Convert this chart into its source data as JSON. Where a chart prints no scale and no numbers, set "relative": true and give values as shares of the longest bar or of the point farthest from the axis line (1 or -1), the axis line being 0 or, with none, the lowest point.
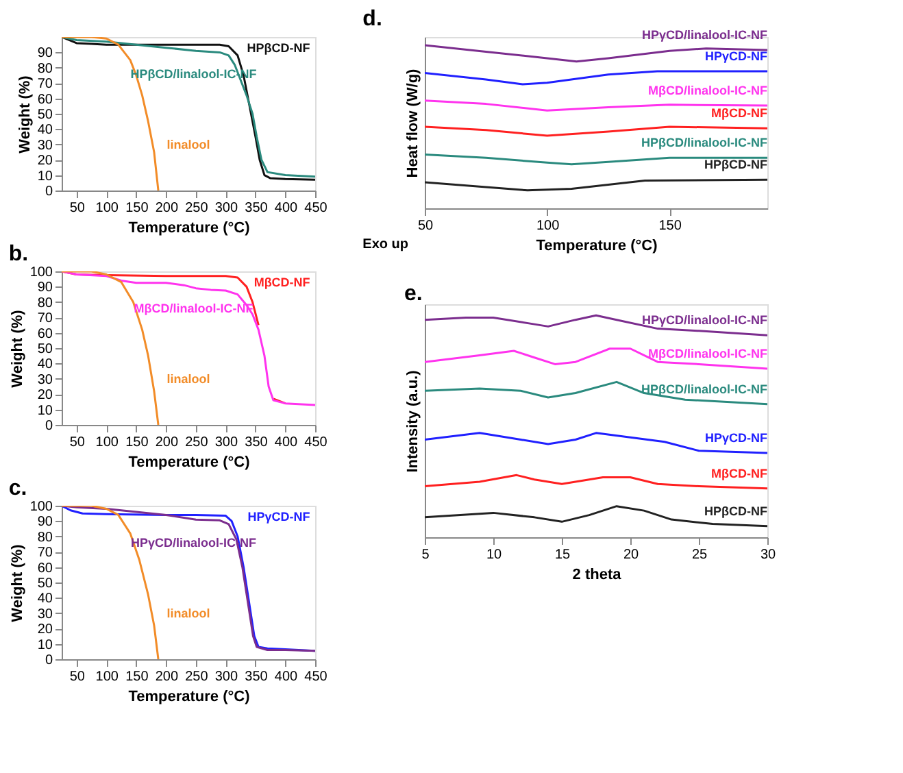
{
  "chart_data": [
    {
      "type": "line",
      "xlabel": "Temperature (°C)",
      "ylabel": "Weight (%)",
      "xlim": [
        25,
        450
      ],
      "ylim": [
        0,
        100
      ],
      "xticks": [
        50,
        100,
        150,
        200,
        250,
        300,
        350,
        400,
        450
      ],
      "yticks": [
        0,
        10,
        20,
        30,
        40,
        50,
        60,
        70,
        80,
        90
      ],
      "grid": false,
      "series": [
        {
          "name": "HPβCD-NF",
          "color": "#111111",
          "x": [
            25,
            50,
            75,
            100,
            150,
            200,
            250,
            290,
            305,
            320,
            330,
            340,
            350,
            357,
            365,
            375,
            400,
            450
          ],
          "values": [
            100,
            96,
            95.5,
            95,
            95,
            95,
            95,
            95,
            94,
            88,
            75,
            55,
            35,
            20,
            10,
            8,
            7.5,
            7
          ]
        },
        {
          "name": "HPβCD/linalool-IC-NF",
          "color": "#2a8a7e",
          "x": [
            25,
            50,
            100,
            150,
            200,
            250,
            290,
            305,
            315,
            325,
            335,
            345,
            352,
            360,
            370,
            400,
            450
          ],
          "values": [
            100,
            98,
            97,
            95,
            93,
            91,
            90,
            88,
            82,
            72,
            62,
            50,
            35,
            20,
            12,
            10,
            9
          ]
        },
        {
          "name": "linalool",
          "color": "#f28c28",
          "x": [
            25,
            75,
            100,
            120,
            140,
            150,
            160,
            170,
            180,
            187
          ],
          "values": [
            100,
            100,
            99,
            95,
            85,
            75,
            62,
            45,
            25,
            0
          ]
        }
      ]
    },
    {
      "type": "line",
      "title": "b.",
      "xlabel": "Temperature (°C)",
      "ylabel": "Weight (%)",
      "xlim": [
        25,
        450
      ],
      "ylim": [
        0,
        100
      ],
      "xticks": [
        50,
        100,
        150,
        200,
        250,
        300,
        350,
        400,
        450
      ],
      "yticks": [
        0,
        10,
        20,
        30,
        40,
        50,
        60,
        70,
        80,
        90,
        100
      ],
      "grid": false,
      "series": [
        {
          "name": "MβCD-NF",
          "color": "#ff2020",
          "x": [
            25,
            50,
            100,
            200,
            300,
            320,
            335,
            345,
            355,
            365,
            372,
            380,
            400
          ],
          "values": [
            100,
            98,
            97.5,
            97,
            97,
            96,
            90,
            80,
            65,
            null,
            null,
            17,
            14
          ]
        },
        {
          "name": "MβCD/linalool-IC-NF",
          "color": "#ff33ee",
          "x": [
            25,
            50,
            100,
            125,
            150,
            200,
            230,
            250,
            275,
            300,
            320,
            335,
            345,
            355,
            365,
            372,
            380,
            400,
            450
          ],
          "values": [
            100,
            98,
            97,
            94,
            92.5,
            92.5,
            91,
            89,
            88,
            87.5,
            85,
            78,
            72,
            62,
            45,
            25,
            16,
            14,
            13
          ]
        },
        {
          "name": "linalool",
          "color": "#f28c28",
          "x": [
            25,
            75,
            100,
            125,
            145,
            160,
            170,
            180,
            187
          ],
          "values": [
            100,
            100,
            98,
            93,
            80,
            62,
            45,
            22,
            0
          ]
        }
      ]
    },
    {
      "type": "line",
      "title": "c.",
      "xlabel": "Temperature (°C)",
      "ylabel": "Weight (%)",
      "xlim": [
        25,
        450
      ],
      "ylim": [
        0,
        100
      ],
      "xticks": [
        50,
        100,
        150,
        200,
        250,
        300,
        350,
        400,
        450
      ],
      "yticks": [
        0,
        10,
        20,
        30,
        40,
        50,
        60,
        70,
        80,
        90,
        100
      ],
      "grid": false,
      "series": [
        {
          "name": "HPγCD-NF",
          "color": "#2020ff",
          "x": [
            25,
            40,
            60,
            100,
            200,
            250,
            300,
            310,
            320,
            330,
            340,
            348,
            355,
            370,
            400,
            450
          ],
          "values": [
            100,
            97,
            95,
            94.5,
            94,
            94,
            93.5,
            90,
            80,
            60,
            35,
            15,
            8,
            7,
            6.5,
            5.5
          ]
        },
        {
          "name": "HPγCD/linalool-IC-NF",
          "color": "#7b2d8e",
          "x": [
            25,
            50,
            100,
            150,
            200,
            250,
            290,
            305,
            318,
            328,
            338,
            346,
            352,
            370,
            400,
            450
          ],
          "values": [
            100,
            99,
            98,
            96,
            94,
            91,
            90.5,
            88,
            78,
            60,
            35,
            15,
            8,
            6,
            6,
            5.5
          ]
        },
        {
          "name": "linalool",
          "color": "#f28c28",
          "x": [
            25,
            75,
            100,
            120,
            140,
            155,
            170,
            180,
            187
          ],
          "values": [
            100,
            100,
            98,
            94,
            82,
            65,
            42,
            22,
            0
          ]
        }
      ]
    },
    {
      "type": "line",
      "title": "d.",
      "xlabel": "Temperature (°C)",
      "ylabel": "Heat flow (W/g)",
      "relative": true,
      "tick_labels": "x",
      "xlim": [
        50,
        190
      ],
      "xticks": [
        50,
        100,
        150
      ],
      "grid": false,
      "annotations": [
        "Exo up"
      ],
      "series": [
        {
          "name": "HPγCD/linalool-IC-NF",
          "color": "#7b2d8e",
          "x": [
            50,
            75,
            100,
            112,
            125,
            150,
            165,
            190
          ],
          "values": [
            1,
            0.96,
            0.92,
            0.9,
            0.92,
            0.965,
            0.98,
            0.97
          ]
        },
        {
          "name": "HPγCD-NF",
          "color": "#2020ff",
          "x": [
            50,
            75,
            90,
            100,
            125,
            145,
            190
          ],
          "values": [
            0.83,
            0.79,
            0.76,
            0.77,
            0.82,
            0.84,
            0.84
          ]
        },
        {
          "name": "MβCD/linalool-IC-NF",
          "color": "#ff33ee",
          "x": [
            50,
            75,
            100,
            125,
            150,
            190
          ],
          "values": [
            0.66,
            0.64,
            0.6,
            0.62,
            0.635,
            0.63
          ]
        },
        {
          "name": "MβCD-NF",
          "color": "#ff2020",
          "x": [
            50,
            75,
            100,
            125,
            150,
            190
          ],
          "values": [
            0.5,
            0.48,
            0.445,
            0.47,
            0.5,
            0.49
          ]
        },
        {
          "name": "HPβCD/linalool-IC-NF",
          "color": "#2a8a7e",
          "x": [
            50,
            75,
            100,
            110,
            125,
            150,
            190
          ],
          "values": [
            0.33,
            0.31,
            0.28,
            0.27,
            0.285,
            0.31,
            0.31
          ]
        },
        {
          "name": "HPβCD-NF",
          "color": "#222222",
          "x": [
            50,
            75,
            92,
            110,
            140,
            190
          ],
          "values": [
            0.16,
            0.13,
            0.11,
            0.12,
            0.17,
            0.175
          ]
        }
      ]
    },
    {
      "type": "line",
      "title": "e.",
      "xlabel": "2 theta",
      "ylabel": "Intensity (a.u.)",
      "relative": true,
      "tick_labels": "x",
      "xlim": [
        5,
        30
      ],
      "xticks": [
        5,
        10,
        15,
        20,
        25,
        30
      ],
      "grid": false,
      "series": [
        {
          "name": "HPγCD/linalool-IC-NF",
          "color": "#7b2d8e",
          "x": [
            5,
            8,
            10,
            13,
            14,
            16,
            17.5,
            19,
            22,
            25,
            30
          ],
          "values": [
            0.98,
            0.99,
            0.99,
            0.96,
            0.95,
            0.98,
            1,
            0.98,
            0.94,
            0.93,
            0.91
          ]
        },
        {
          "name": "MβCD/linalool-IC-NF",
          "color": "#ff33ee",
          "x": [
            5,
            9,
            11.5,
            13,
            14.5,
            16,
            18.5,
            20,
            22,
            25,
            30
          ],
          "values": [
            0.79,
            0.82,
            0.84,
            0.81,
            0.78,
            0.79,
            0.85,
            0.85,
            0.79,
            0.78,
            0.76
          ]
        },
        {
          "name": "HPβCD/linalool-IC-NF",
          "color": "#2a8a7e",
          "x": [
            5,
            9,
            12,
            14,
            16,
            19,
            21,
            24,
            30
          ],
          "values": [
            0.66,
            0.67,
            0.66,
            0.63,
            0.65,
            0.7,
            0.65,
            0.62,
            0.6
          ]
        },
        {
          "name": "HPγCD-NF",
          "color": "#2020ff",
          "x": [
            5,
            9,
            12,
            14,
            16,
            17.5,
            20,
            22.5,
            25,
            30
          ],
          "values": [
            0.44,
            0.47,
            0.44,
            0.42,
            0.44,
            0.47,
            0.45,
            0.43,
            0.39,
            0.38
          ]
        },
        {
          "name": "MβCD-NF",
          "color": "#ff2020",
          "x": [
            5,
            9,
            11.7,
            13,
            15,
            18,
            20,
            22,
            25,
            30
          ],
          "values": [
            0.23,
            0.25,
            0.28,
            0.26,
            0.24,
            0.27,
            0.27,
            0.24,
            0.23,
            0.22
          ]
        },
        {
          "name": "HPβCD-NF",
          "color": "#222222",
          "x": [
            5,
            10,
            13,
            15,
            17,
            19,
            21,
            23,
            26,
            30
          ],
          "values": [
            0.09,
            0.11,
            0.09,
            0.07,
            0.1,
            0.14,
            0.12,
            0.08,
            0.06,
            0.05
          ]
        }
      ]
    }
  ]
}
